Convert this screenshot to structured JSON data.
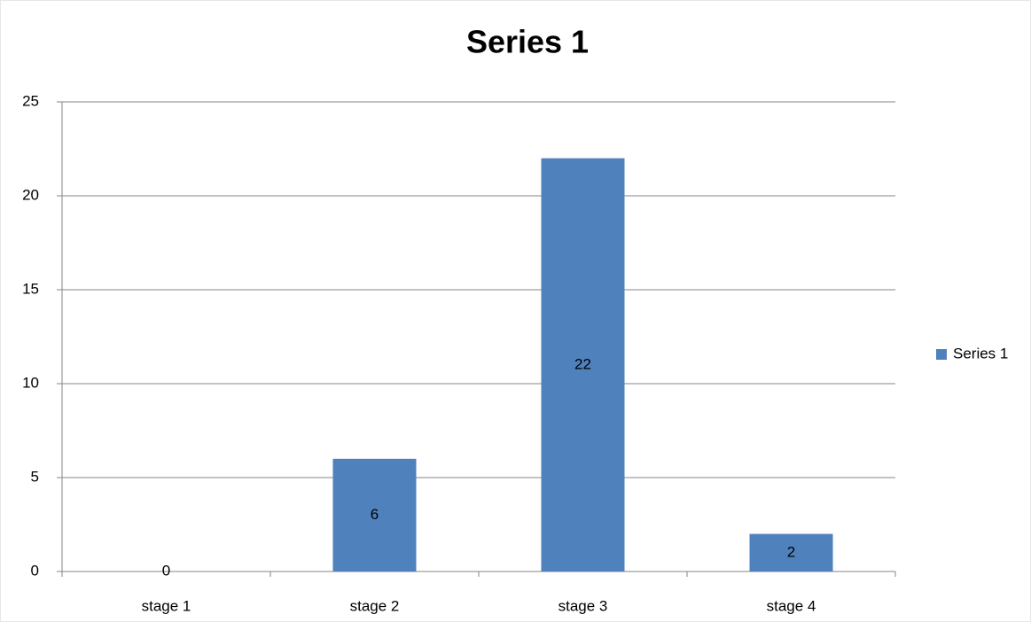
{
  "chart_data": {
    "type": "bar",
    "title": "Series 1",
    "categories": [
      "stage 1",
      "stage 2",
      "stage 3",
      "stage 4"
    ],
    "series": [
      {
        "name": "Series 1",
        "color": "#4f81bd",
        "values": [
          0,
          6,
          22,
          2
        ]
      }
    ],
    "ylim": [
      0,
      25
    ],
    "yticks": [
      0,
      5,
      10,
      15,
      20,
      25
    ],
    "grid": true,
    "legend": "right"
  }
}
